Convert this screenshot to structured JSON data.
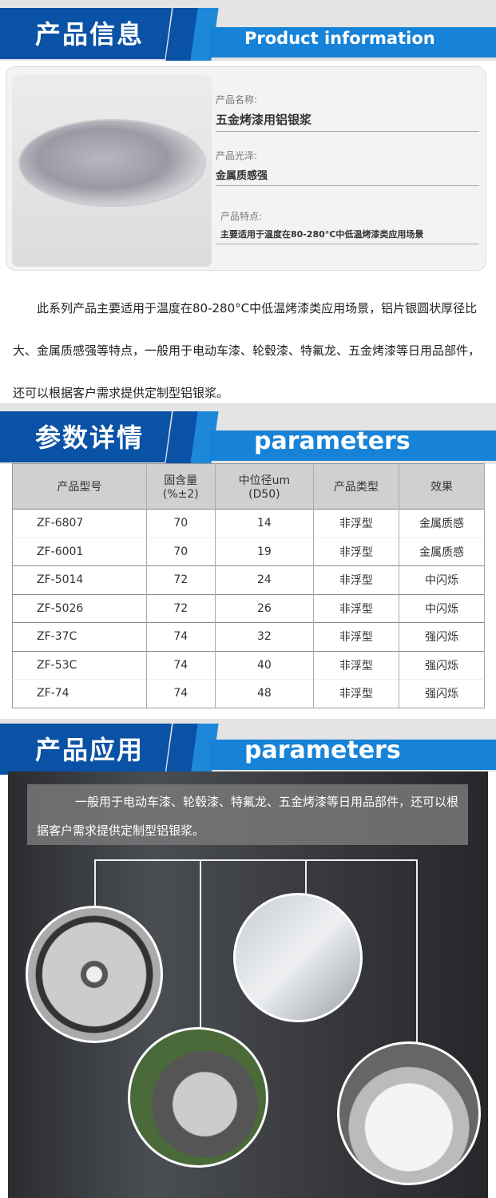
{
  "sections": {
    "info": {
      "cn": "产品信息",
      "en": "Product information"
    },
    "params": {
      "cn": "参数详情",
      "en": "parameters"
    },
    "app": {
      "cn": "产品应用",
      "en": "parameters"
    }
  },
  "product": {
    "name_label": "产品名称:",
    "name": "五金烤漆用铝银浆",
    "gloss_label": "产品光泽:",
    "gloss": "金属质感强",
    "feature_label": "产品特点:",
    "feature": "主要适用于温度在80-280°C中低温烤漆类应用场景"
  },
  "description": "此系列产品主要适用于温度在80-280°C中低温烤漆类应用场景，铝片银圆状厚径比大、金属质感强等特点，一般用于电动车漆、轮毂漆、特氟龙、五金烤漆等日用品部件，还可以根据客户需求提供定制型铝银浆。",
  "table": {
    "headers": [
      "产品型号",
      "固含量\n(%±2)",
      "中位径um\n(D50)",
      "产品类型",
      "效果"
    ],
    "rows": [
      [
        "ZF-6807",
        "70",
        "14",
        "非浮型",
        "金属质感"
      ],
      [
        "ZF-6001",
        "70",
        "19",
        "非浮型",
        "金属质感"
      ],
      [
        "ZF-5014",
        "72",
        "24",
        "非浮型",
        "中闪烁"
      ],
      [
        "ZF-5026",
        "72",
        "26",
        "非浮型",
        "中闪烁"
      ],
      [
        "ZF-37C",
        "74",
        "32",
        "非浮型",
        "强闪烁"
      ],
      [
        "ZF-53C",
        "74",
        "40",
        "非浮型",
        "强闪烁"
      ],
      [
        "ZF-74",
        "74",
        "48",
        "非浮型",
        "强闪烁"
      ]
    ]
  },
  "application": {
    "caption": "一般用于电动车漆、轮毂漆、特氟龙、五金烤漆等日用品部件，还可以根据客户需求提供定制型铝银浆。",
    "images": [
      "wheel",
      "metal-kitchenware",
      "scooter",
      "appliance-part"
    ]
  },
  "colors": {
    "dark_blue": "#0a52a5",
    "light_blue": "#1683d8"
  }
}
